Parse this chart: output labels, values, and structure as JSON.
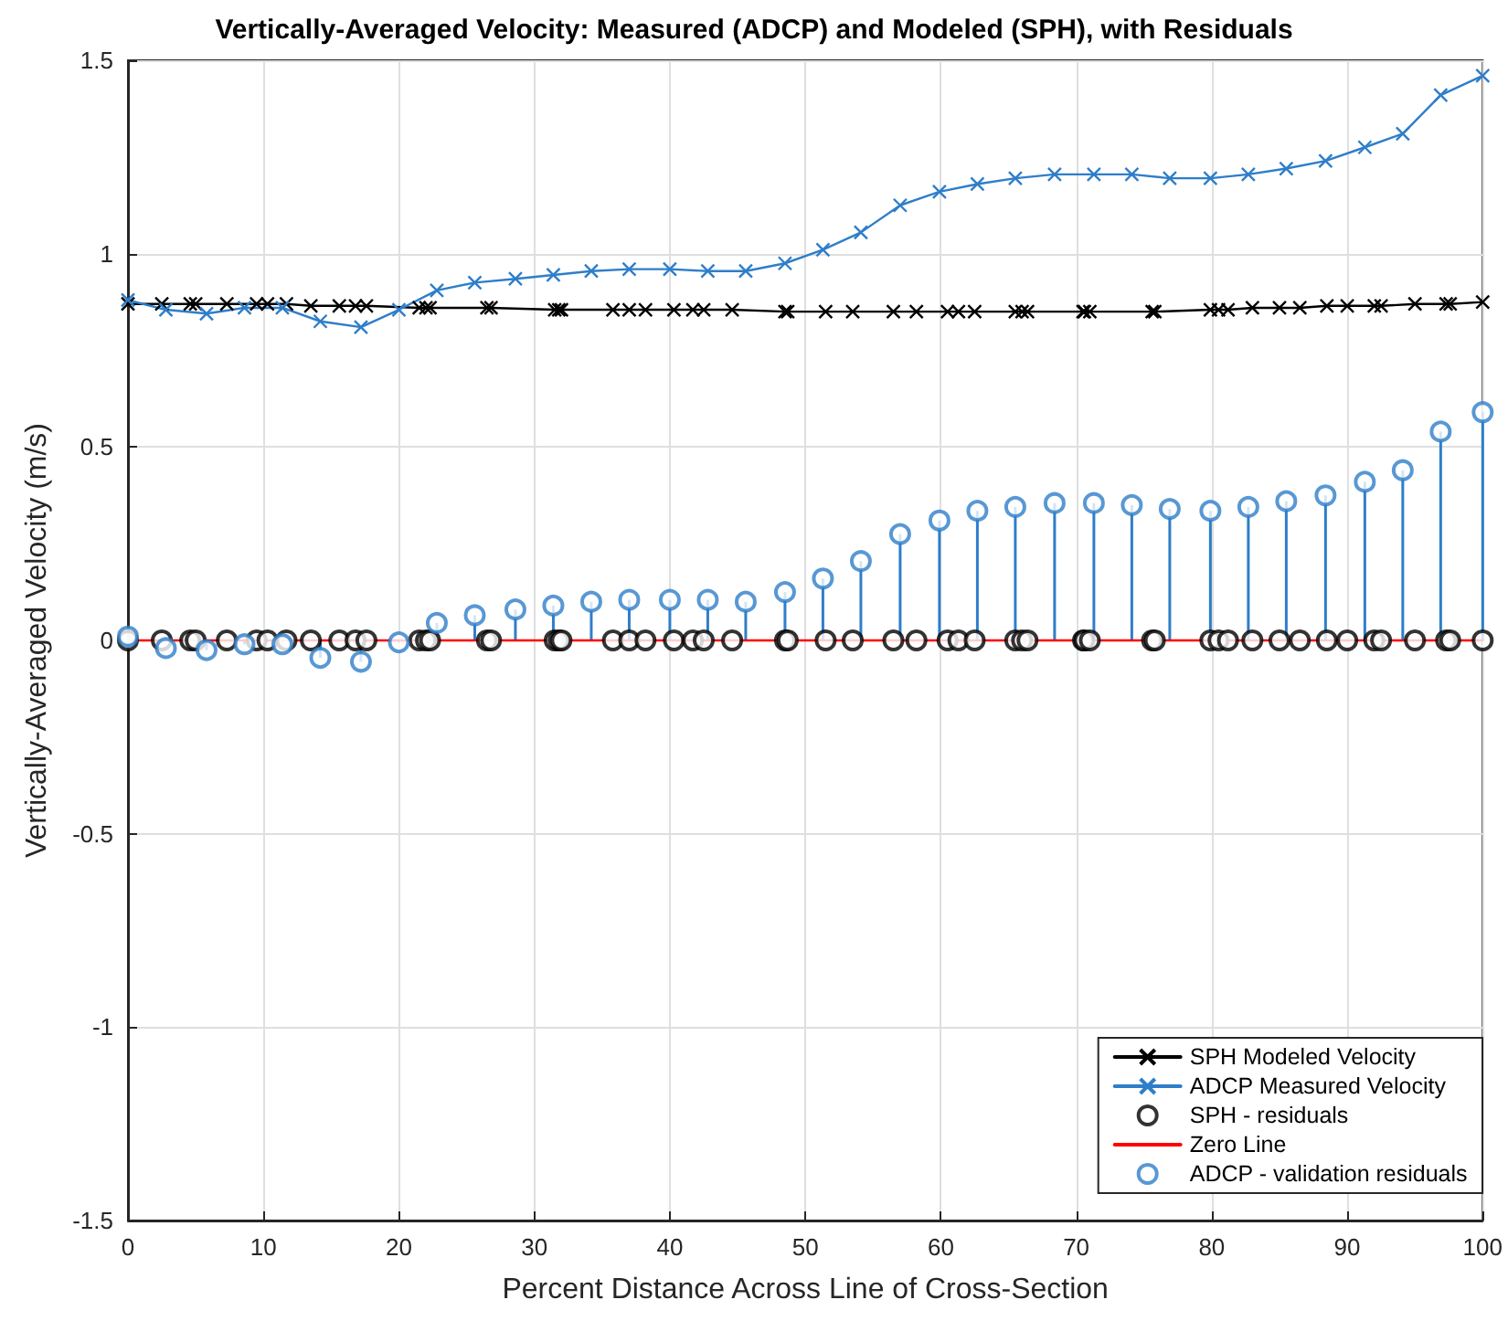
{
  "chart_data": {
    "type": "line",
    "title": "Vertically-Averaged Velocity: Measured (ADCP) and Modeled (SPH), with Residuals",
    "xlabel": "Percent Distance Across Line of Cross-Section",
    "ylabel": "Vertically-Averaged Velocity (m/s)",
    "xlim": [
      0,
      100
    ],
    "xticks": [
      0,
      10,
      20,
      30,
      40,
      50,
      60,
      70,
      80,
      90,
      100
    ],
    "ylim": [
      -1.5,
      1.5
    ],
    "yticks": [
      -1.5,
      -1,
      -0.5,
      0,
      0.5,
      1,
      1.5
    ],
    "grid": true,
    "legend": "bottom right",
    "series": [
      {
        "name": "SPH Modeled Velocity",
        "marker": "cross",
        "color": "#000000",
        "x": [
          0,
          2.5,
          4.6,
          5,
          7.3,
          9.5,
          10.3,
          11.7,
          13.5,
          15.6,
          16.8,
          17.6,
          21.5,
          22,
          22.3,
          26.5,
          26.8,
          31.5,
          31.8,
          32,
          35.8,
          37,
          38.2,
          40.3,
          41.7,
          42.5,
          44.6,
          48.5,
          48.7,
          51.5,
          53.5,
          56.5,
          58.2,
          60.5,
          61.3,
          62.5,
          65.5,
          66,
          66.4,
          70.5,
          70.6,
          71,
          75.6,
          75.8,
          79.9,
          80.5,
          81.2,
          83,
          85,
          86.5,
          88.5,
          90,
          92,
          92.5,
          95,
          97.3,
          97.6,
          100
        ],
        "values": [
          0.87,
          0.87,
          0.87,
          0.87,
          0.87,
          0.87,
          0.87,
          0.87,
          0.865,
          0.865,
          0.865,
          0.865,
          0.86,
          0.86,
          0.86,
          0.86,
          0.86,
          0.855,
          0.855,
          0.855,
          0.855,
          0.855,
          0.855,
          0.855,
          0.855,
          0.855,
          0.855,
          0.85,
          0.85,
          0.85,
          0.85,
          0.85,
          0.85,
          0.85,
          0.85,
          0.85,
          0.85,
          0.85,
          0.85,
          0.85,
          0.85,
          0.85,
          0.85,
          0.85,
          0.855,
          0.855,
          0.855,
          0.86,
          0.86,
          0.86,
          0.865,
          0.865,
          0.865,
          0.865,
          0.87,
          0.87,
          0.87,
          0.875
        ]
      },
      {
        "name": "ADCP Measured Velocity",
        "marker": "cross",
        "color": "#2e7ec9",
        "x": [
          0,
          2.8,
          5.8,
          8.6,
          11.4,
          14.2,
          17.2,
          20,
          22.8,
          25.6,
          28.6,
          31.4,
          34.2,
          37,
          40,
          42.8,
          45.6,
          48.5,
          51.3,
          54.1,
          57,
          59.9,
          62.7,
          65.5,
          68.4,
          71.3,
          74.1,
          76.9,
          79.9,
          82.7,
          85.5,
          88.4,
          91.3,
          94.1,
          96.9,
          100
        ],
        "values": [
          0.88,
          0.855,
          0.845,
          0.86,
          0.86,
          0.825,
          0.81,
          0.855,
          0.905,
          0.925,
          0.935,
          0.945,
          0.955,
          0.96,
          0.96,
          0.955,
          0.955,
          0.975,
          1.01,
          1.055,
          1.125,
          1.16,
          1.18,
          1.195,
          1.205,
          1.205,
          1.205,
          1.195,
          1.195,
          1.205,
          1.22,
          1.24,
          1.275,
          1.31,
          1.41,
          1.46
        ]
      },
      {
        "name": "SPH - residuals",
        "type": "scatter",
        "marker": "circle",
        "color": "#000000",
        "x": [
          0,
          2.5,
          4.6,
          5,
          7.3,
          9.5,
          10.3,
          11.7,
          13.5,
          15.6,
          16.8,
          17.6,
          21.5,
          22,
          22.3,
          26.5,
          26.8,
          31.5,
          31.8,
          32,
          35.8,
          37,
          38.2,
          40.3,
          41.7,
          42.5,
          44.6,
          48.5,
          48.7,
          51.5,
          53.5,
          56.5,
          58.2,
          60.5,
          61.3,
          62.5,
          65.5,
          66,
          66.4,
          70.5,
          70.6,
          71,
          75.6,
          75.8,
          79.9,
          80.5,
          81.2,
          83,
          85,
          86.5,
          88.5,
          90,
          92,
          92.5,
          95,
          97.3,
          97.6,
          100
        ],
        "values": [
          0,
          0,
          0,
          0,
          0,
          0,
          0,
          0,
          0,
          0,
          0,
          0,
          0,
          0,
          0,
          0,
          0,
          0,
          0,
          0,
          0,
          0,
          0,
          0,
          0,
          0,
          0,
          0,
          0,
          0,
          0,
          0,
          0,
          0,
          0,
          0,
          0,
          0,
          0,
          0,
          0,
          0,
          0,
          0,
          0,
          0,
          0,
          0,
          0,
          0,
          0,
          0,
          0,
          0,
          0,
          0,
          0,
          0
        ]
      },
      {
        "name": "Zero Line",
        "color": "#ff0000",
        "x": [
          0,
          100
        ],
        "values": [
          0,
          0
        ]
      },
      {
        "name": "ADCP - validation residuals",
        "type": "lollipop",
        "marker": "circle",
        "color": "#2e7ec9",
        "x": [
          0,
          2.8,
          5.8,
          8.6,
          11.4,
          14.2,
          17.2,
          20,
          22.8,
          25.6,
          28.6,
          31.4,
          34.2,
          37,
          40,
          42.8,
          45.6,
          48.5,
          51.3,
          54.1,
          57,
          59.9,
          62.7,
          65.5,
          68.4,
          71.3,
          74.1,
          76.9,
          79.9,
          82.7,
          85.5,
          88.4,
          91.3,
          94.1,
          96.9,
          100
        ],
        "values": [
          0.01,
          -0.02,
          -0.025,
          -0.01,
          -0.01,
          -0.045,
          -0.055,
          -0.005,
          0.045,
          0.065,
          0.08,
          0.09,
          0.1,
          0.105,
          0.105,
          0.105,
          0.1,
          0.125,
          0.16,
          0.205,
          0.275,
          0.31,
          0.335,
          0.345,
          0.355,
          0.355,
          0.35,
          0.34,
          0.335,
          0.345,
          0.36,
          0.375,
          0.41,
          0.44,
          0.54,
          0.59
        ]
      }
    ]
  }
}
